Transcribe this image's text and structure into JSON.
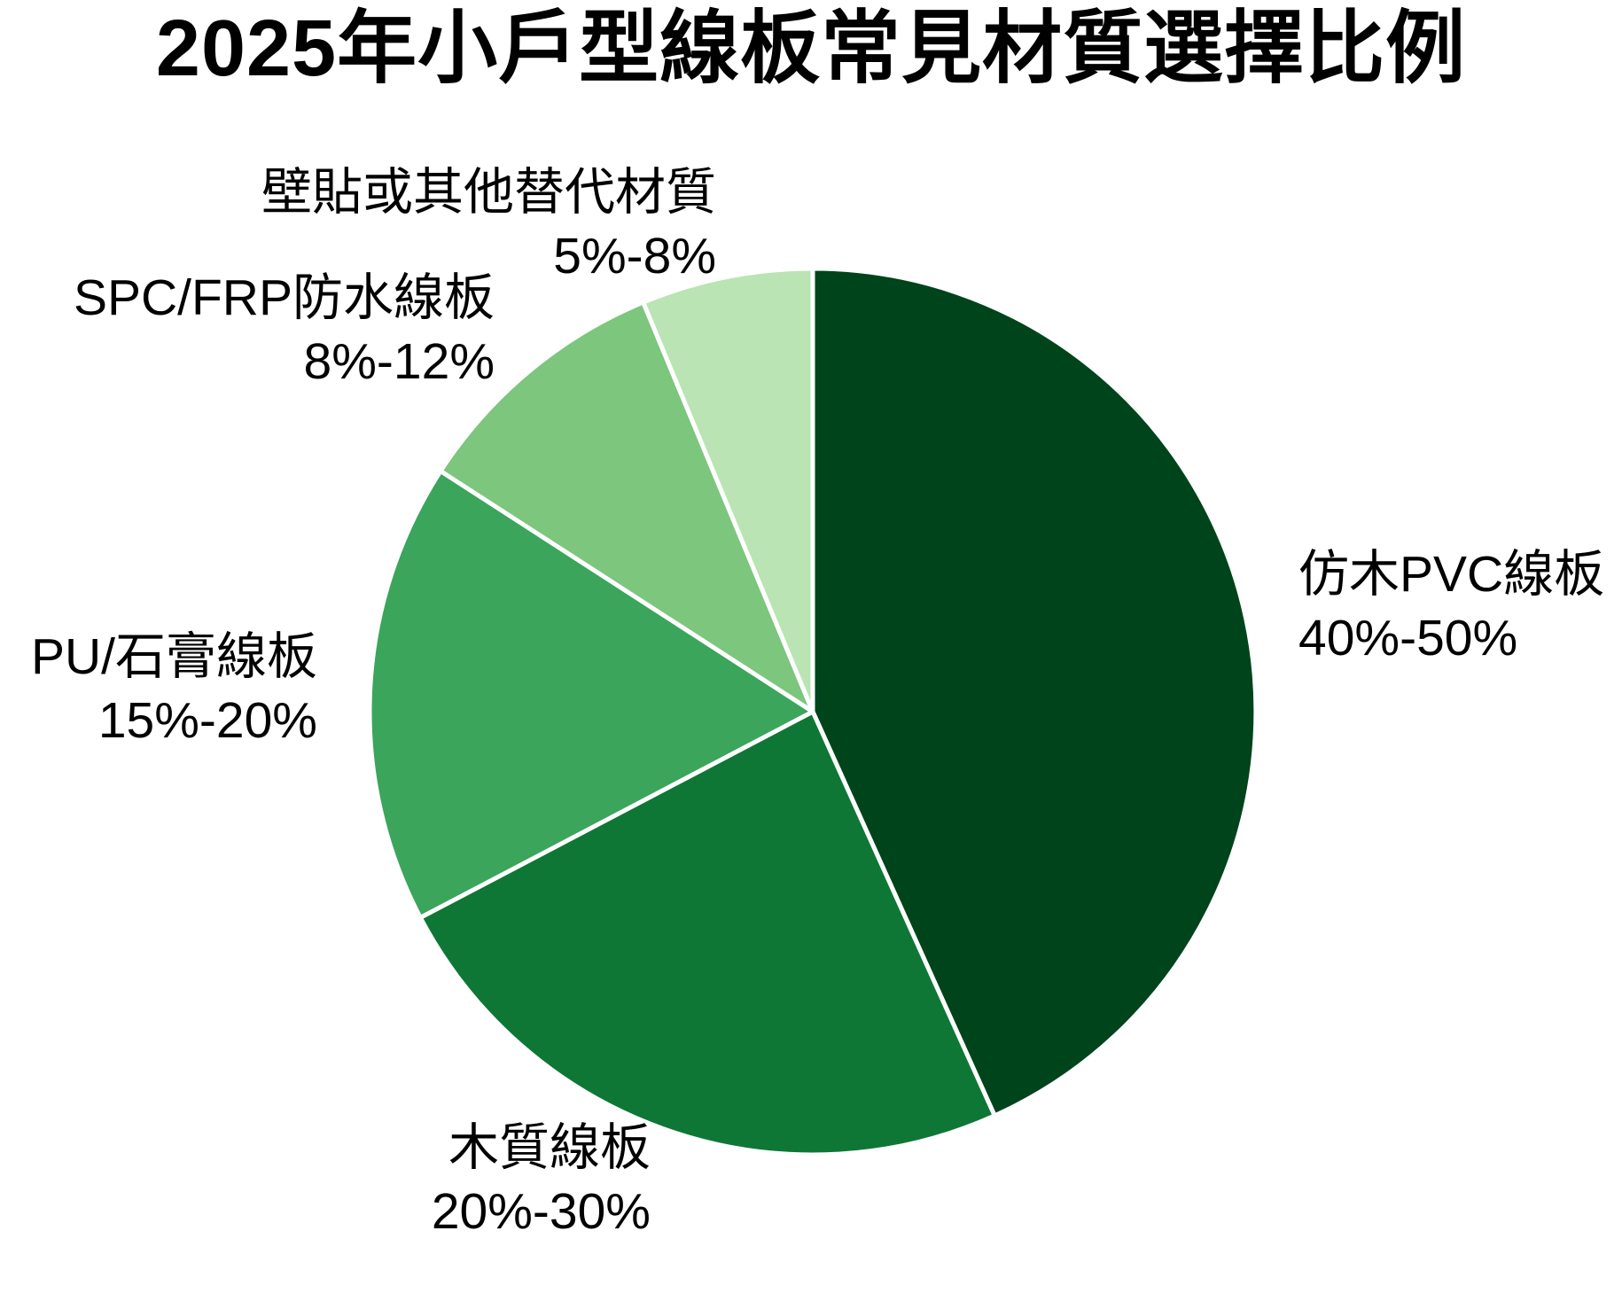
{
  "page": {
    "background": "#ffffff",
    "text_color": "#000000"
  },
  "chart_data": {
    "type": "pie",
    "title": "2025年小戶型線板常見材質選擇比例",
    "legend": "none",
    "labels_position": "outside",
    "start_angle": "12 o'clock, clockwise",
    "wedge_border_color": "#ffffff",
    "slices": [
      {
        "label": "仿木PVC線板",
        "range_label": "40%-50%",
        "value_mid": 45,
        "color": "#00441b"
      },
      {
        "label": "木質線板",
        "range_label": "20%-30%",
        "value_mid": 25,
        "color": "#0e7735"
      },
      {
        "label": "PU/石膏線板",
        "range_label": "15%-20%",
        "value_mid": 17.5,
        "color": "#3aa55b"
      },
      {
        "label": "SPC/FRP防水線板",
        "range_label": "8%-12%",
        "value_mid": 10,
        "color": "#7cc67d"
      },
      {
        "label": "壁貼或其他替代材質",
        "range_label": "5%-8%",
        "value_mid": 6.5,
        "color": "#bae4b3"
      }
    ]
  }
}
